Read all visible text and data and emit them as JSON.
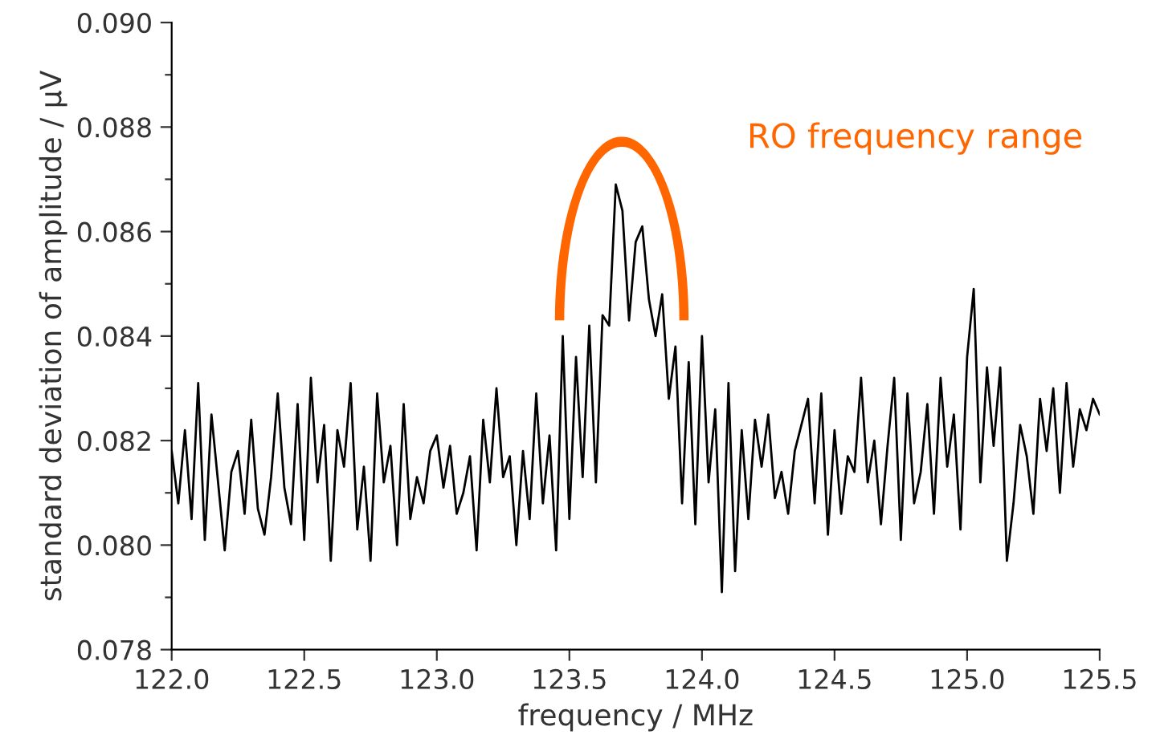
{
  "chart_data": {
    "type": "line",
    "xlabel": "frequency / MHz",
    "ylabel": "standard deviation of amplitude / µV",
    "annotations": [
      "RO frequency range"
    ],
    "xlim": [
      122.0,
      125.5
    ],
    "ylim": [
      0.078,
      0.09
    ],
    "xticks": [
      {
        "value": 122.0,
        "label": "122.0"
      },
      {
        "value": 122.5,
        "label": "122.5"
      },
      {
        "value": 123.0,
        "label": "123.0"
      },
      {
        "value": 123.5,
        "label": "123.5"
      },
      {
        "value": 124.0,
        "label": "124.0"
      },
      {
        "value": 124.5,
        "label": "124.5"
      },
      {
        "value": 125.0,
        "label": "125.0"
      },
      {
        "value": 125.5,
        "label": "125.5"
      }
    ],
    "yticks": [
      {
        "value": 0.078,
        "label": "0.078"
      },
      {
        "value": 0.079,
        "label": null
      },
      {
        "value": 0.08,
        "label": "0.080"
      },
      {
        "value": 0.081,
        "label": null
      },
      {
        "value": 0.082,
        "label": "0.082"
      },
      {
        "value": 0.083,
        "label": null
      },
      {
        "value": 0.084,
        "label": "0.084"
      },
      {
        "value": 0.085,
        "label": null
      },
      {
        "value": 0.086,
        "label": "0.086"
      },
      {
        "value": 0.087,
        "label": null
      },
      {
        "value": 0.088,
        "label": "0.088"
      },
      {
        "value": 0.089,
        "label": null
      },
      {
        "value": 0.09,
        "label": "0.090"
      }
    ],
    "grid": false,
    "marker": "none",
    "line_style": "solid",
    "series": [
      {
        "color": "#000000",
        "x": [
          122.0,
          122.025,
          122.05,
          122.075,
          122.1,
          122.125,
          122.15,
          122.175,
          122.2,
          122.225,
          122.25,
          122.275,
          122.3,
          122.325,
          122.35,
          122.375,
          122.4,
          122.425,
          122.45,
          122.475,
          122.5,
          122.525,
          122.55,
          122.575,
          122.6,
          122.625,
          122.65,
          122.675,
          122.7,
          122.725,
          122.75,
          122.775,
          122.8,
          122.825,
          122.85,
          122.875,
          122.9,
          122.925,
          122.95,
          122.975,
          123.0,
          123.025,
          123.05,
          123.075,
          123.1,
          123.125,
          123.15,
          123.175,
          123.2,
          123.225,
          123.25,
          123.275,
          123.3,
          123.325,
          123.35,
          123.375,
          123.4,
          123.425,
          123.45,
          123.475,
          123.5,
          123.525,
          123.55,
          123.575,
          123.6,
          123.625,
          123.65,
          123.675,
          123.7,
          123.725,
          123.75,
          123.775,
          123.8,
          123.825,
          123.85,
          123.875,
          123.9,
          123.925,
          123.95,
          123.975,
          124.0,
          124.025,
          124.05,
          124.075,
          124.1,
          124.125,
          124.15,
          124.175,
          124.2,
          124.225,
          124.25,
          124.275,
          124.3,
          124.325,
          124.35,
          124.375,
          124.4,
          124.425,
          124.45,
          124.475,
          124.5,
          124.525,
          124.55,
          124.575,
          124.6,
          124.625,
          124.65,
          124.675,
          124.7,
          124.725,
          124.75,
          124.775,
          124.8,
          124.825,
          124.85,
          124.875,
          124.9,
          124.925,
          124.95,
          124.975,
          125.0,
          125.025,
          125.05,
          125.075,
          125.1,
          125.125,
          125.15,
          125.175,
          125.2,
          125.225,
          125.25,
          125.275,
          125.3,
          125.325,
          125.35,
          125.375,
          125.4,
          125.425,
          125.45,
          125.475,
          125.5
        ],
        "values": [
          0.0818,
          0.0808,
          0.0822,
          0.0805,
          0.0831,
          0.0801,
          0.0825,
          0.0812,
          0.0799,
          0.0814,
          0.0818,
          0.0806,
          0.0824,
          0.0807,
          0.0802,
          0.0813,
          0.0829,
          0.0811,
          0.0804,
          0.0827,
          0.0801,
          0.0832,
          0.0812,
          0.0823,
          0.0797,
          0.0822,
          0.0815,
          0.0831,
          0.0803,
          0.0815,
          0.0797,
          0.0829,
          0.0812,
          0.0819,
          0.08,
          0.0827,
          0.0805,
          0.0813,
          0.0808,
          0.0818,
          0.0821,
          0.0811,
          0.0819,
          0.0806,
          0.081,
          0.0817,
          0.0799,
          0.0824,
          0.0812,
          0.083,
          0.0813,
          0.0817,
          0.08,
          0.0818,
          0.0805,
          0.0829,
          0.0808,
          0.0821,
          0.0799,
          0.084,
          0.0805,
          0.0836,
          0.0813,
          0.0842,
          0.0812,
          0.0844,
          0.0842,
          0.0869,
          0.0864,
          0.0843,
          0.0858,
          0.0861,
          0.0847,
          0.084,
          0.0848,
          0.0828,
          0.0838,
          0.0808,
          0.0835,
          0.0804,
          0.084,
          0.0812,
          0.0826,
          0.0791,
          0.0831,
          0.0795,
          0.0822,
          0.0805,
          0.0824,
          0.0815,
          0.0825,
          0.0809,
          0.0814,
          0.0806,
          0.0818,
          0.0823,
          0.0828,
          0.0808,
          0.0829,
          0.0802,
          0.0822,
          0.0806,
          0.0817,
          0.0814,
          0.0832,
          0.0812,
          0.082,
          0.0804,
          0.0819,
          0.0832,
          0.0801,
          0.0829,
          0.0808,
          0.0814,
          0.0827,
          0.0806,
          0.0832,
          0.0815,
          0.0825,
          0.0803,
          0.0836,
          0.0849,
          0.0812,
          0.0834,
          0.0819,
          0.0834,
          0.0797,
          0.0808,
          0.0823,
          0.0817,
          0.0806,
          0.0828,
          0.0818,
          0.083,
          0.081,
          0.0831,
          0.0815,
          0.0826,
          0.0822,
          0.0828,
          0.0825
        ]
      }
    ]
  }
}
